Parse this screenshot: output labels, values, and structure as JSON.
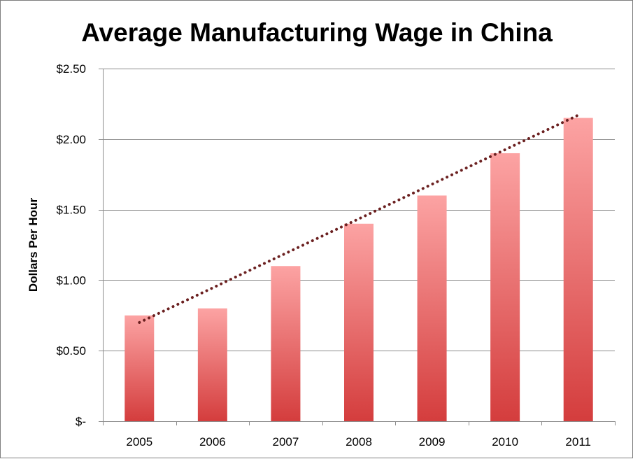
{
  "chart_data": {
    "type": "bar",
    "title": "Average Manufacturing Wage in China",
    "xlabel": "",
    "ylabel": "Dollars Per Hour",
    "categories": [
      "2005",
      "2006",
      "2007",
      "2008",
      "2009",
      "2010",
      "2011"
    ],
    "values": [
      0.75,
      0.8,
      1.1,
      1.4,
      1.6,
      1.9,
      2.15
    ],
    "ylim": [
      0,
      2.5
    ],
    "yticks": [
      0,
      0.5,
      1.0,
      1.5,
      2.0,
      2.5
    ],
    "ytick_labels": [
      "$-",
      "$0.50",
      "$1.00",
      "$1.50",
      "$2.00",
      "$2.50"
    ],
    "grid": true,
    "legend": "none",
    "trendline": {
      "type": "linear",
      "style": "dotted",
      "color": "#6b2020",
      "start": 0.7,
      "end": 2.17
    },
    "bar_color_top": "#fca3a3",
    "bar_color_bottom": "#d43d3d"
  }
}
